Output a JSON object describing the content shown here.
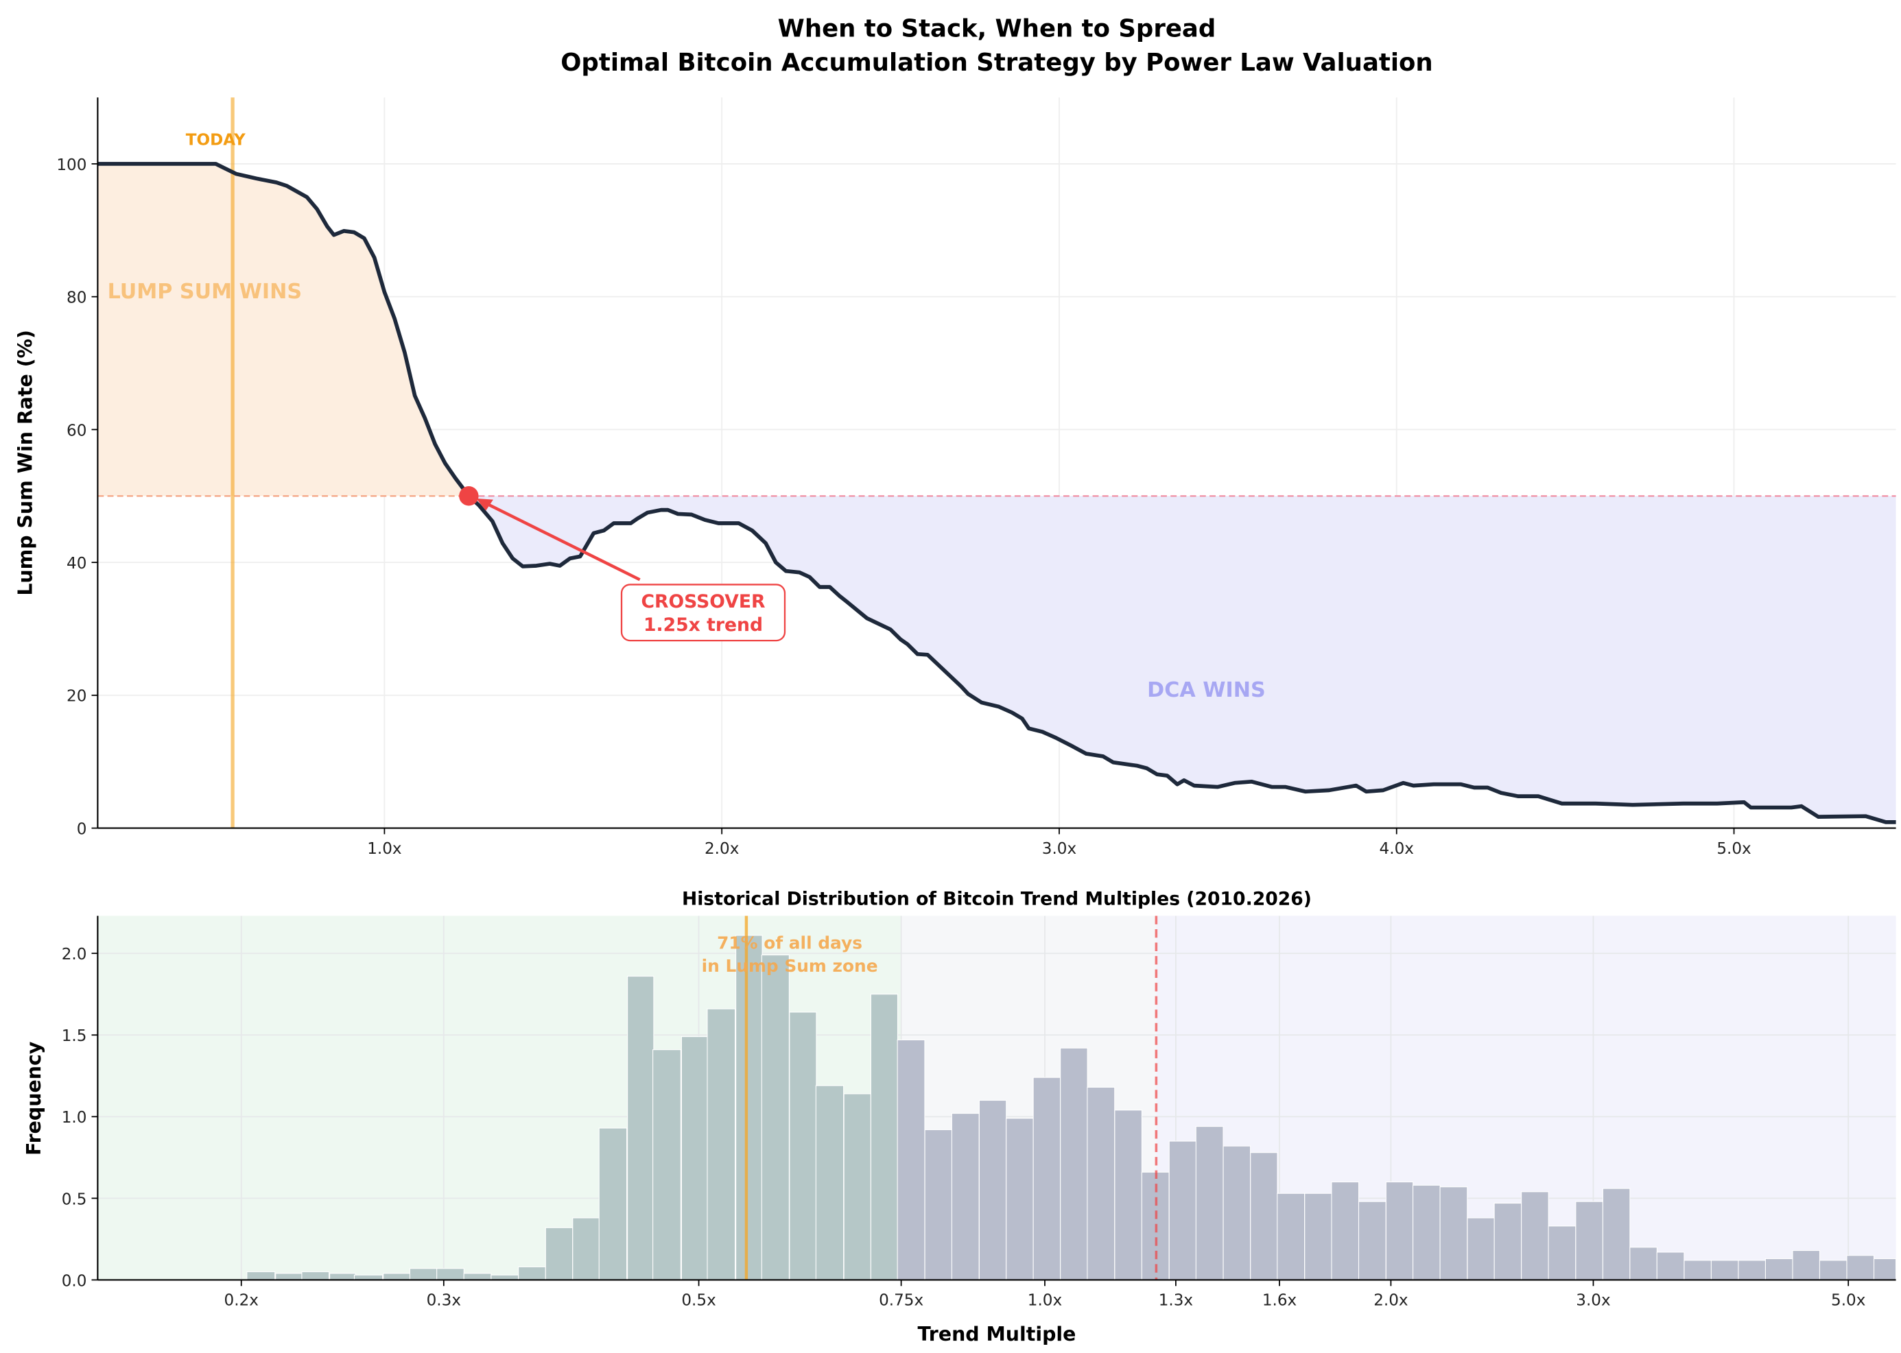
{
  "title_line1": "When to Stack, When to Spread",
  "title_line2": "Optimal Bitcoin Accumulation Strategy by Power Law Valuation",
  "colors": {
    "line": "#1e293b",
    "today": "#f5a623",
    "crossover": "#ef4444",
    "lump_fill": "#fdeee0",
    "dca_fill": "#ebebfb",
    "bar_lump": "#b5c7c7",
    "bar_other": "#b8bdcc"
  },
  "chart_data": [
    {
      "type": "area",
      "ylabel": "Lump Sum Win Rate (%)",
      "xlim": [
        0.15,
        5.48
      ],
      "ylim": [
        0,
        110
      ],
      "x_ticks": [
        1,
        2,
        3,
        4,
        5
      ],
      "x_tick_labels": [
        "1.0x",
        "2.0x",
        "3.0x",
        "4.0x",
        "5.0x"
      ],
      "y_ticks": [
        0,
        20,
        40,
        60,
        80,
        100
      ],
      "y_tick_labels": [
        "0",
        "20",
        "40",
        "60",
        "80",
        "100"
      ],
      "grid": true,
      "threshold": 50,
      "today_x": 0.55,
      "crossover": {
        "x": 1.25,
        "y": 50
      },
      "annotations": {
        "today": "TODAY",
        "lump_sum": "LUMP SUM WINS",
        "dca": "DCA WINS",
        "crossover_line1": "CROSSOVER",
        "crossover_line2": "1.25x trend"
      },
      "x": [
        0.15,
        0.5,
        0.52,
        0.56,
        0.62,
        0.68,
        0.71,
        0.77,
        0.8,
        0.83,
        0.85,
        0.88,
        0.91,
        0.94,
        0.97,
        1.0,
        1.03,
        1.06,
        1.09,
        1.12,
        1.15,
        1.18,
        1.21,
        1.25,
        1.28,
        1.32,
        1.35,
        1.38,
        1.41,
        1.45,
        1.49,
        1.52,
        1.55,
        1.58,
        1.62,
        1.65,
        1.68,
        1.73,
        1.75,
        1.78,
        1.82,
        1.84,
        1.87,
        1.91,
        1.95,
        1.99,
        2.05,
        2.09,
        2.13,
        2.16,
        2.19,
        2.23,
        2.26,
        2.29,
        2.32,
        2.35,
        2.37,
        2.43,
        2.5,
        2.53,
        2.55,
        2.58,
        2.61,
        2.66,
        2.71,
        2.73,
        2.77,
        2.82,
        2.86,
        2.89,
        2.91,
        2.95,
        2.99,
        3.04,
        3.08,
        3.13,
        3.16,
        3.23,
        3.26,
        3.29,
        3.32,
        3.35,
        3.37,
        3.4,
        3.47,
        3.52,
        3.57,
        3.63,
        3.67,
        3.73,
        3.8,
        3.88,
        3.91,
        3.96,
        4.02,
        4.05,
        4.11,
        4.19,
        4.23,
        4.27,
        4.31,
        4.36,
        4.42,
        4.49,
        4.59,
        4.7,
        4.85,
        4.95,
        5.03,
        5.05,
        5.17,
        5.2,
        5.25,
        5.39,
        5.45,
        5.48
      ],
      "y": [
        100,
        100,
        99.5,
        98.5,
        97.8,
        97.2,
        96.7,
        95,
        93.2,
        90.6,
        89.3,
        89.9,
        89.7,
        88.8,
        85.9,
        80.7,
        76.7,
        71.6,
        65.1,
        61.7,
        57.8,
        54.9,
        52.7,
        50,
        48.6,
        46.2,
        42.9,
        40.6,
        39.4,
        39.5,
        39.8,
        39.5,
        40.6,
        40.9,
        44.4,
        44.8,
        45.9,
        45.9,
        46.6,
        47.5,
        47.9,
        47.9,
        47.3,
        47.2,
        46.4,
        45.9,
        45.9,
        44.8,
        42.9,
        40,
        38.7,
        38.5,
        37.8,
        36.3,
        36.3,
        34.9,
        34.1,
        31.6,
        29.9,
        28.4,
        27.7,
        26.2,
        26.1,
        23.7,
        21.3,
        20.2,
        18.9,
        18.3,
        17.4,
        16.5,
        15,
        14.5,
        13.6,
        12.3,
        11.2,
        10.8,
        9.9,
        9.4,
        9,
        8.1,
        7.9,
        6.6,
        7.2,
        6.4,
        6.2,
        6.8,
        7,
        6.2,
        6.2,
        5.5,
        5.7,
        6.4,
        5.5,
        5.7,
        6.8,
        6.4,
        6.6,
        6.6,
        6.1,
        6.1,
        5.3,
        4.8,
        4.8,
        3.7,
        3.7,
        3.5,
        3.7,
        3.7,
        3.9,
        3.1,
        3.1,
        3.3,
        1.7,
        1.8,
        0.9,
        0.9
      ]
    },
    {
      "type": "bar",
      "title": "Historical Distribution of Bitcoin Trend Multiples (2010.2026)",
      "xlabel": "Trend Multiple",
      "ylabel": "Frequency",
      "x_scale": "log",
      "xlim": [
        0.15,
        5.5
      ],
      "ylim": [
        0,
        2.23
      ],
      "x_ticks": [
        0.2,
        0.3,
        0.5,
        0.75,
        1.0,
        1.3,
        1.6,
        2.0,
        3.0,
        5.0
      ],
      "x_tick_labels": [
        "0.2x",
        "0.3x",
        "0.5x",
        "0.75x",
        "1.0x",
        "1.3x",
        "1.6x",
        "2.0x",
        "3.0x",
        "5.0x"
      ],
      "y_ticks": [
        0,
        0.5,
        1.0,
        1.5,
        2.0
      ],
      "y_tick_labels": [
        "0.0",
        "0.5",
        "1.0",
        "1.5",
        "2.0"
      ],
      "grid": true,
      "lump_zone_max": 0.75,
      "crossover_x": 1.25,
      "today_x": 0.55,
      "annotation_line1": "71% of all days",
      "annotation_line2": "in Lump Sum zone",
      "bin_centers": [
        0.208,
        0.22,
        0.232,
        0.245,
        0.258,
        0.273,
        0.288,
        0.304,
        0.321,
        0.339,
        0.358,
        0.378,
        0.399,
        0.421,
        0.445,
        0.469,
        0.496,
        0.523,
        0.553,
        0.583,
        0.616,
        0.65,
        0.687,
        0.725,
        0.765,
        0.808,
        0.853,
        0.901,
        0.951,
        1.004,
        1.06,
        1.119,
        1.182,
        1.248,
        1.318,
        1.391,
        1.469,
        1.551,
        1.637,
        1.729,
        1.825,
        1.927,
        2.035,
        2.148,
        2.268,
        2.395,
        2.528,
        2.669,
        2.818,
        2.976,
        3.142,
        3.317,
        3.502,
        3.698,
        3.904,
        4.122,
        4.352,
        4.595,
        4.851,
        5.122,
        5.408
      ],
      "frequency": [
        0.05,
        0.04,
        0.05,
        0.04,
        0.03,
        0.04,
        0.07,
        0.07,
        0.04,
        0.03,
        0.08,
        0.32,
        0.38,
        0.93,
        1.86,
        1.41,
        1.49,
        1.66,
        2.11,
        1.99,
        1.64,
        1.19,
        1.14,
        1.75,
        1.47,
        0.92,
        1.02,
        1.1,
        0.99,
        1.24,
        1.42,
        1.18,
        1.04,
        0.66,
        0.85,
        0.94,
        0.82,
        0.78,
        0.53,
        0.53,
        0.6,
        0.48,
        0.6,
        0.58,
        0.57,
        0.38,
        0.47,
        0.54,
        0.33,
        0.48,
        0.56,
        0.2,
        0.17,
        0.12,
        0.12,
        0.12,
        0.13,
        0.18,
        0.12,
        0.15,
        0.13
      ]
    }
  ]
}
